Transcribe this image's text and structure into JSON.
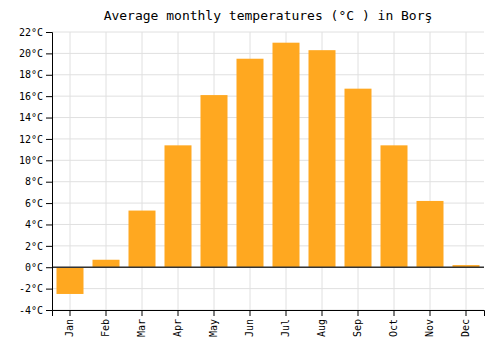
{
  "chart_data": {
    "type": "bar",
    "title": "Average monthly temperatures (°C ) in Borş",
    "categories": [
      "Jan",
      "Feb",
      "Mar",
      "Apr",
      "May",
      "Jun",
      "Jul",
      "Aug",
      "Sep",
      "Oct",
      "Nov",
      "Dec"
    ],
    "values": [
      -2.5,
      0.7,
      5.3,
      11.4,
      16.1,
      19.5,
      21.0,
      20.3,
      16.7,
      11.4,
      6.2,
      0.2
    ],
    "color": "#FFA820",
    "ylim": [
      -4,
      22
    ],
    "yticks": [
      {
        "value": -4,
        "label": "-4°C"
      },
      {
        "value": -2,
        "label": "-2°C"
      },
      {
        "value": 0,
        "label": "0°C"
      },
      {
        "value": 2,
        "label": "2°C"
      },
      {
        "value": 4,
        "label": "4°C"
      },
      {
        "value": 6,
        "label": "6°C"
      },
      {
        "value": 8,
        "label": "8°C"
      },
      {
        "value": 10,
        "label": "10°C"
      },
      {
        "value": 12,
        "label": "12°C"
      },
      {
        "value": 14,
        "label": "14°C"
      },
      {
        "value": 16,
        "label": "16°C"
      },
      {
        "value": 18,
        "label": "18°C"
      },
      {
        "value": 20,
        "label": "20°C"
      },
      {
        "value": 22,
        "label": "22°C"
      }
    ],
    "grid": true
  }
}
